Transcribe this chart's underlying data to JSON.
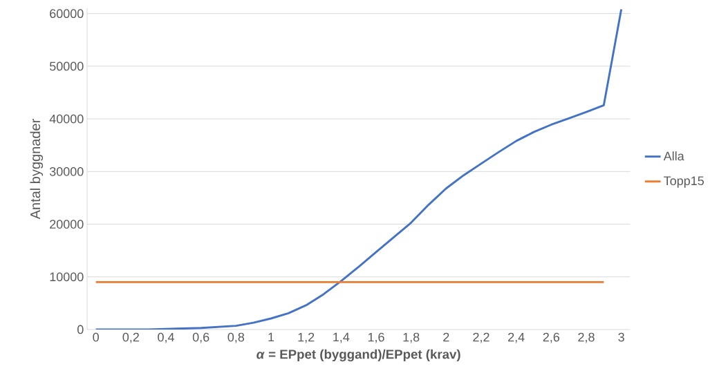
{
  "chart_data": {
    "type": "line",
    "xlabel": "*α* = EPpet (byggand)/EPpet (krav)",
    "ylabel": "Antal byggnader",
    "categories": [
      "0",
      null,
      "0,2",
      null,
      "0,4",
      null,
      "0,6",
      null,
      "0,8",
      null,
      "1",
      null,
      "1,2",
      null,
      "1,4",
      null,
      "1,6",
      null,
      "1,8",
      null,
      "2",
      null,
      "2,2",
      null,
      "2,4",
      null,
      "2,6",
      null,
      "2,8",
      null,
      "3"
    ],
    "series": [
      {
        "name": "Alla",
        "color": "#4472c4",
        "values": [
          0,
          0,
          0,
          0,
          100,
          200,
          300,
          500,
          700,
          1300,
          2100,
          3100,
          4600,
          6700,
          9200,
          11900,
          14700,
          17500,
          20300,
          23700,
          26800,
          29300,
          31500,
          33700,
          35800,
          37500,
          38900,
          40100,
          41300,
          42600,
          60800
        ]
      },
      {
        "name": "Topp15",
        "color": "#ed7d31",
        "values": [
          9000,
          9000,
          9000,
          9000,
          9000,
          9000,
          9000,
          9000,
          9000,
          9000,
          9000,
          9000,
          9000,
          9000,
          9000,
          9000,
          9000,
          9000,
          9000,
          9000,
          9000,
          9000,
          9000,
          9000,
          9000,
          9000,
          9000,
          9000,
          9000,
          9000,
          null
        ]
      }
    ],
    "ylim": [
      0,
      61000
    ],
    "yticks": [
      0,
      10000,
      20000,
      30000,
      40000,
      50000,
      60000
    ],
    "grid": "y",
    "legend": "right",
    "marker": "none",
    "line_style": "solid"
  }
}
